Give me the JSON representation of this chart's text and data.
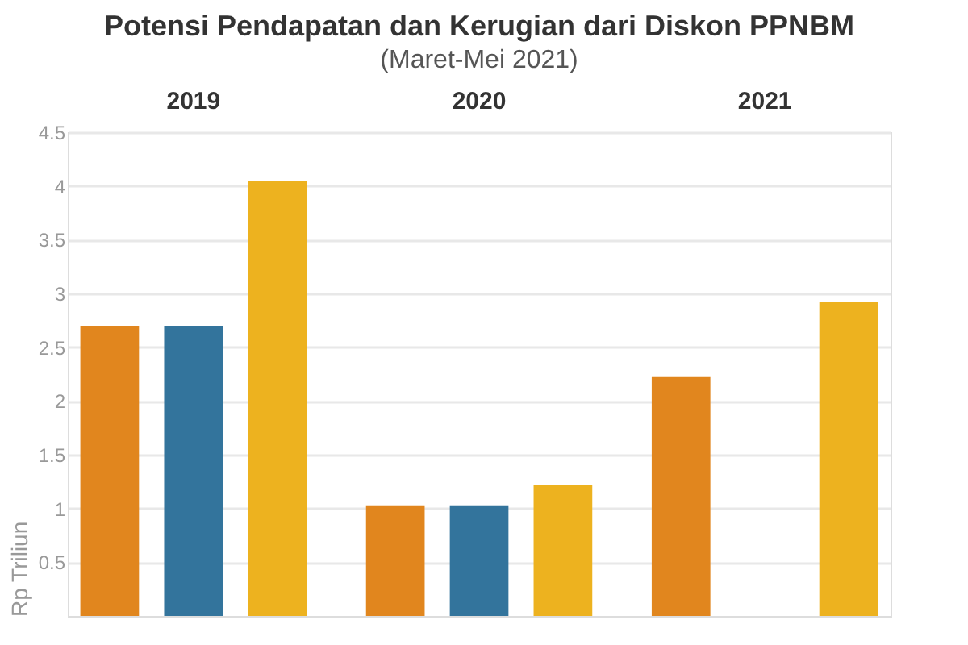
{
  "chart_data": {
    "type": "bar",
    "title": "Potensi Pendapatan dan Kerugian dari Diskon PPNBM",
    "subtitle": "(Maret-Mei 2021)",
    "ylabel": "Rp Triliun",
    "categories": [
      "2019",
      "2020",
      "2021"
    ],
    "series": [
      {
        "color": "#e1861e",
        "values": [
          2.7,
          1.03,
          2.23
        ]
      },
      {
        "color": "#33749c",
        "values": [
          2.7,
          1.03,
          null
        ]
      },
      {
        "color": "#edb21f",
        "values": [
          4.05,
          1.22,
          2.92
        ]
      }
    ],
    "ylim": [
      0,
      4.5
    ],
    "yticks": [
      0.5,
      1,
      1.5,
      2,
      2.5,
      3,
      3.5,
      4,
      4.5
    ],
    "grid": "y"
  }
}
